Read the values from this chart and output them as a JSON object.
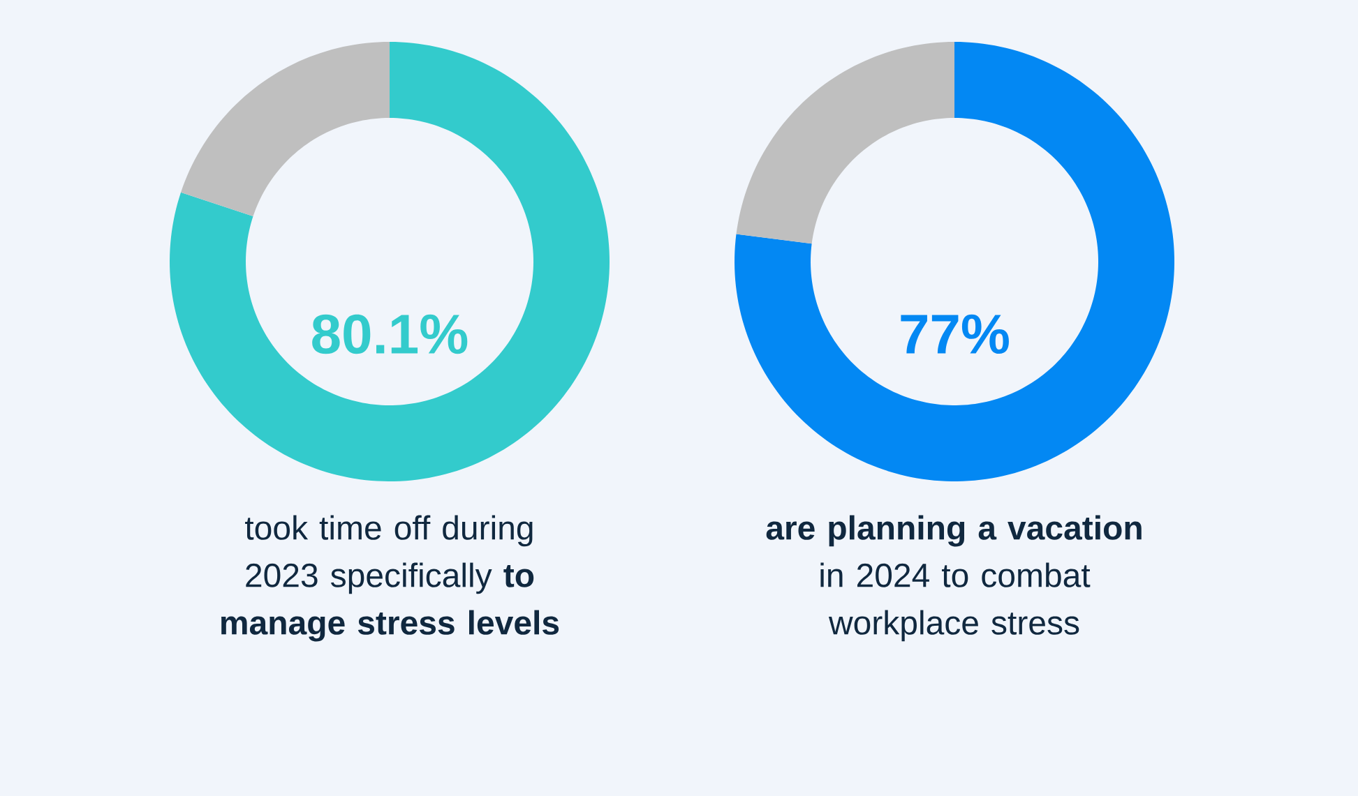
{
  "chart_data": [
    {
      "type": "donut",
      "categories": [
        null,
        null
      ],
      "values": [
        80.1,
        19.9
      ],
      "colors": [
        "#33cbcc",
        "#bfbfbf"
      ],
      "value_labels": [
        "80.1%",
        null
      ],
      "annotations": [
        "took time off during 2023 specifically **to manage stress levels**"
      ]
    },
    {
      "type": "donut",
      "categories": [
        null,
        null
      ],
      "values": [
        77,
        23
      ],
      "colors": [
        "#0388f3",
        "#bfbfbf"
      ],
      "value_labels": [
        "77%",
        null
      ],
      "annotations": [
        "**are planning a vacation** in 2024 to combat workplace stress"
      ]
    }
  ]
}
